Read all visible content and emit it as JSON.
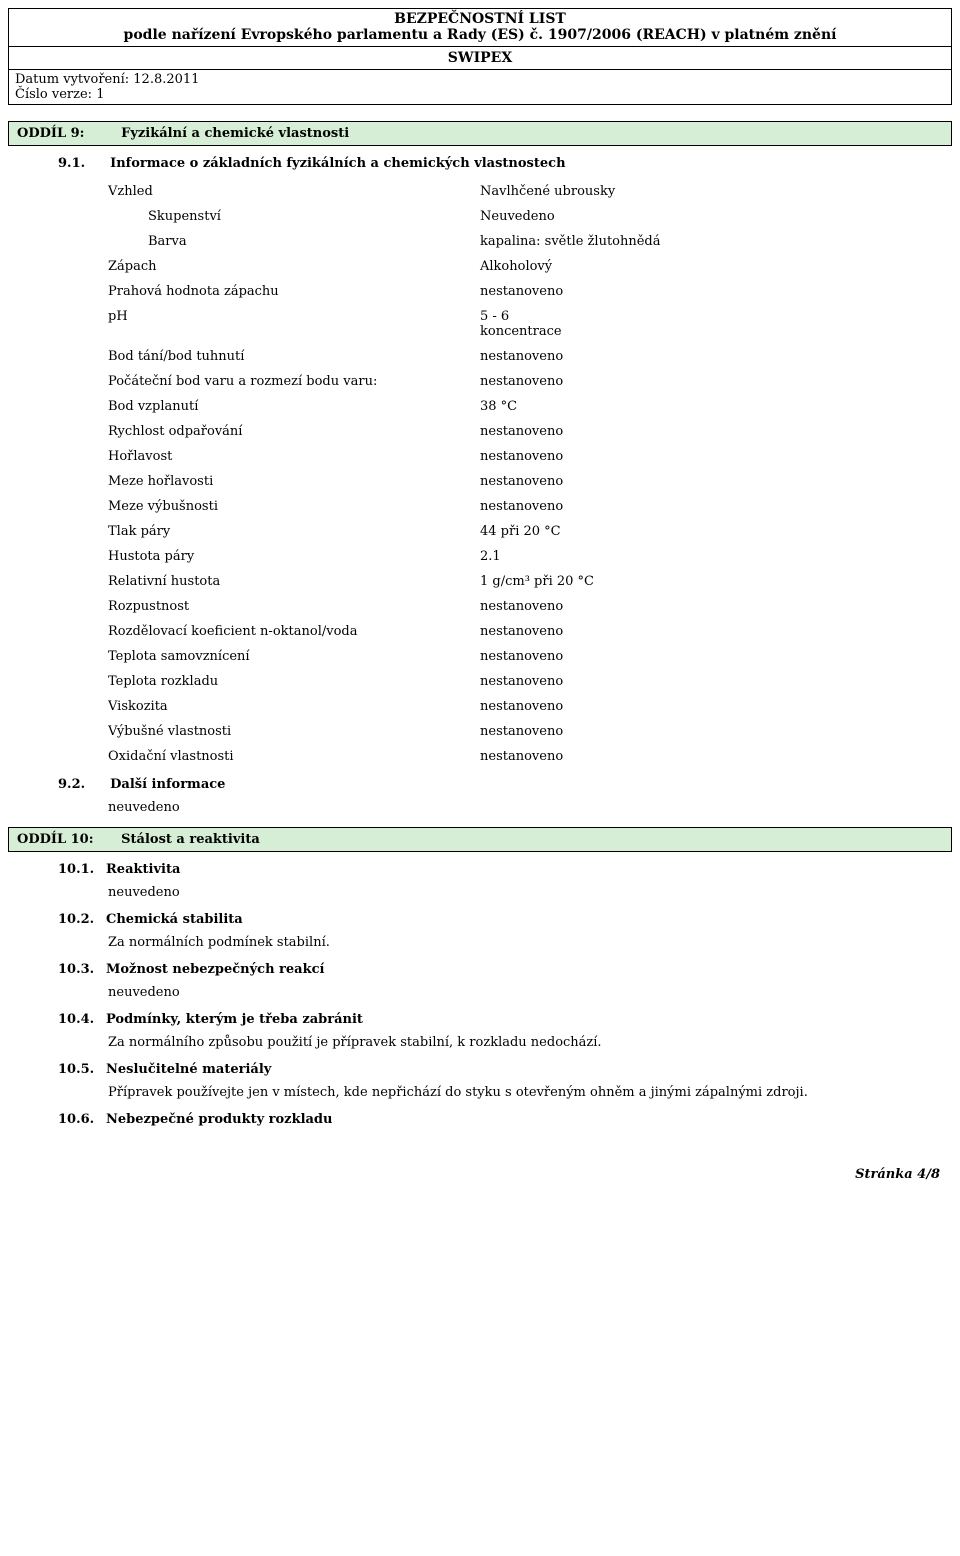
{
  "header": {
    "line1": "BEZPEČNOSTNÍ LIST",
    "line2": "podle nařízení Evropského parlamentu a Rady (ES) č. 1907/2006 (REACH) v platném znění",
    "title": "SWIPEX"
  },
  "meta": {
    "created_label": "Datum vytvoření:",
    "created_value": "12.8.2011",
    "version_label": "Číslo verze:",
    "version_value": "1"
  },
  "section9": {
    "id": "ODDÍL 9:",
    "title": "Fyzikální a chemické vlastnosti",
    "sub1_num": "9.1.",
    "sub1_label": "Informace o základních fyzikálních a chemických vlastnostech",
    "rows": [
      {
        "key": "Vzhled",
        "val": "Navlhčené ubrousky",
        "indent": false
      },
      {
        "key": "Skupenství",
        "val": "Neuvedeno",
        "indent": true
      },
      {
        "key": "Barva",
        "val": "kapalina: světle žlutohnědá",
        "indent": true
      },
      {
        "key": "Zápach",
        "val": "Alkoholový",
        "indent": false
      },
      {
        "key": "Prahová hodnota zápachu",
        "val": "nestanoveno",
        "indent": false
      },
      {
        "key": "pH",
        "val": "5 - 6\nkoncentrace",
        "indent": false
      },
      {
        "key": "Bod tání/bod tuhnutí",
        "val": "nestanoveno",
        "indent": false
      },
      {
        "key": "Počáteční bod varu a rozmezí bodu varu:",
        "val": "nestanoveno",
        "indent": false
      },
      {
        "key": "Bod vzplanutí",
        "val": "38 °C",
        "indent": false
      },
      {
        "key": "Rychlost odpařování",
        "val": "nestanoveno",
        "indent": false
      },
      {
        "key": "Hořlavost",
        "val": "nestanoveno",
        "indent": false
      },
      {
        "key": "Meze hořlavosti",
        "val": "nestanoveno",
        "indent": false
      },
      {
        "key": "Meze výbušnosti",
        "val": "nestanoveno",
        "indent": false
      },
      {
        "key": "Tlak páry",
        "val": "44 při 20 °C",
        "indent": false
      },
      {
        "key": "Hustota páry",
        "val": "2.1",
        "indent": false
      },
      {
        "key": "Relativní hustota",
        "val": "1 g/cm³ při 20 °C",
        "indent": false
      },
      {
        "key": "Rozpustnost",
        "val": "nestanoveno",
        "indent": false
      },
      {
        "key": "Rozdělovací koeficient n-oktanol/voda",
        "val": "nestanoveno",
        "indent": false
      },
      {
        "key": "Teplota samovznícení",
        "val": "nestanoveno",
        "indent": false
      },
      {
        "key": "Teplota rozkladu",
        "val": "nestanoveno",
        "indent": false
      },
      {
        "key": "Viskozita",
        "val": "nestanoveno",
        "indent": false
      },
      {
        "key": "Výbušné vlastnosti",
        "val": "nestanoveno",
        "indent": false
      },
      {
        "key": "Oxidační vlastnosti",
        "val": "nestanoveno",
        "indent": false
      }
    ],
    "sub2_num": "9.2.",
    "sub2_label": "Další informace",
    "sub2_body": "neuvedeno"
  },
  "section10": {
    "id": "ODDÍL 10:",
    "title": "Stálost a reaktivita",
    "items": [
      {
        "num": "10.1.",
        "label": "Reaktivita",
        "body": "neuvedeno"
      },
      {
        "num": "10.2.",
        "label": "Chemická stabilita",
        "body": "Za normálních podmínek stabilní."
      },
      {
        "num": "10.3.",
        "label": "Možnost nebezpečných reakcí",
        "body": "neuvedeno"
      },
      {
        "num": "10.4.",
        "label": "Podmínky, kterým je třeba zabránit",
        "body": "Za normálního způsobu použití je přípravek stabilní, k rozkladu nedochází."
      },
      {
        "num": "10.5.",
        "label": "Neslučitelné materiály",
        "body": "Přípravek používejte jen v místech, kde nepřichází do styku s otevřeným ohněm a jinými zápalnými zdroji."
      },
      {
        "num": "10.6.",
        "label": "Nebezpečné produkty rozkladu",
        "body": ""
      }
    ]
  },
  "footer": {
    "page": "Stránka 4/8"
  },
  "style": {
    "section_bg": "#d5eed5",
    "border_color": "#000000",
    "body_font_size": 13
  }
}
